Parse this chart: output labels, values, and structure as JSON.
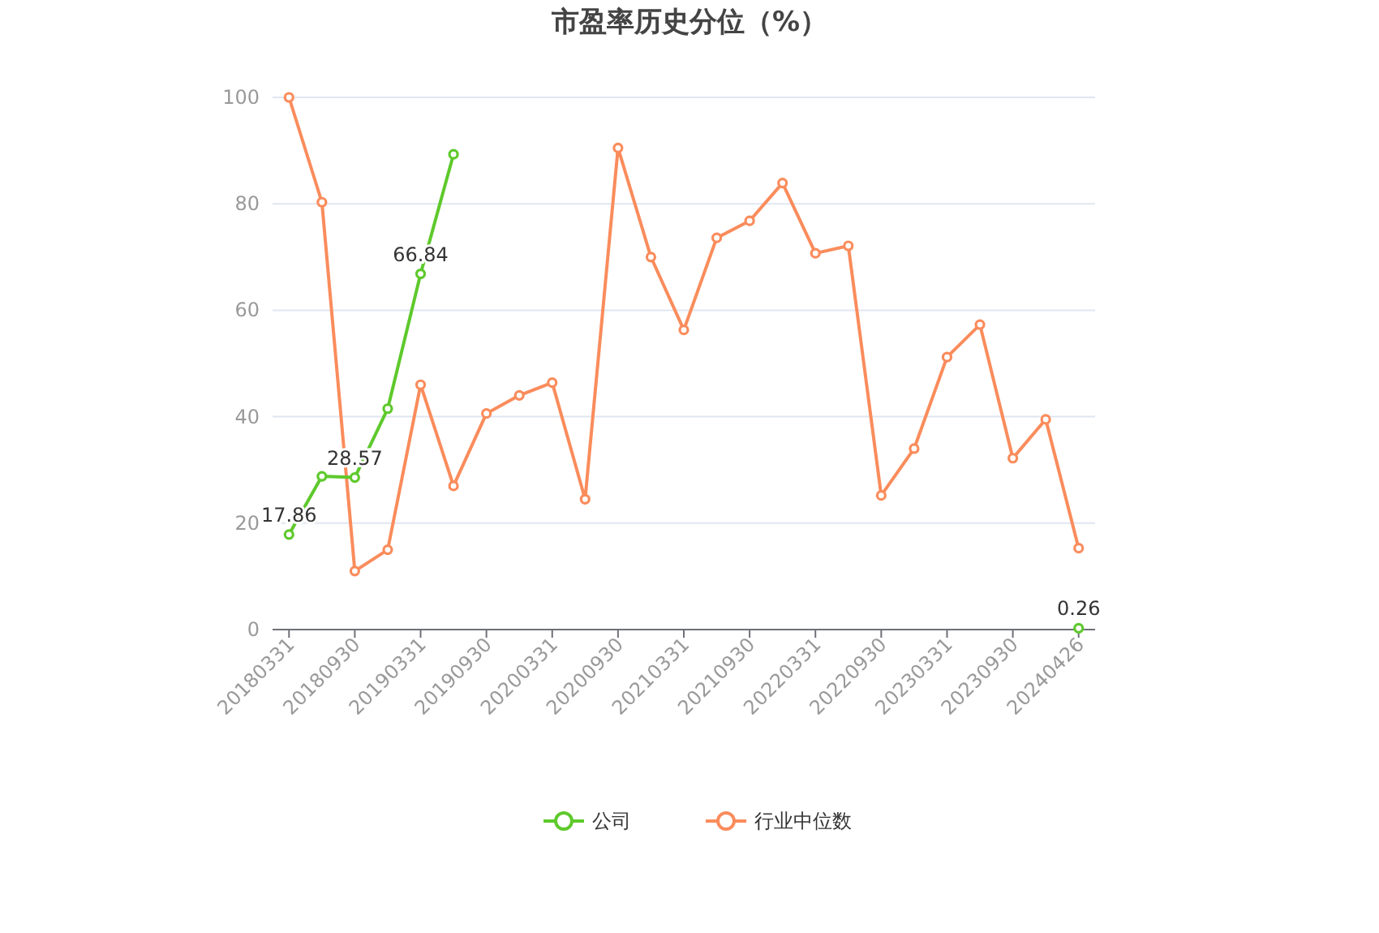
{
  "chart_data": {
    "type": "line",
    "title": "市盈率历史分位（%）",
    "categories": [
      "20180331",
      null,
      "20180930",
      null,
      "20190331",
      null,
      "20190930",
      null,
      "20200331",
      null,
      "20200930",
      null,
      "20210331",
      null,
      "20210930",
      null,
      "20220331",
      null,
      "20220930",
      null,
      "20230331",
      null,
      "20230930",
      null,
      "20240426"
    ],
    "series": [
      {
        "name": "公司",
        "color": "#5ec92c",
        "values": [
          17.86,
          28.8,
          28.57,
          41.5,
          66.84,
          89.3,
          null,
          null,
          null,
          null,
          null,
          null,
          null,
          null,
          null,
          null,
          null,
          null,
          null,
          null,
          null,
          null,
          null,
          null,
          0.26
        ],
        "value_labels": [
          "17.86",
          null,
          "28.57",
          null,
          "66.84",
          null,
          null,
          null,
          null,
          null,
          null,
          null,
          null,
          null,
          null,
          null,
          null,
          null,
          null,
          null,
          null,
          null,
          null,
          null,
          "0.26"
        ]
      },
      {
        "name": "行业中位数",
        "color": "#fa8c5c",
        "values": [
          100,
          80.3,
          11,
          15,
          46,
          27,
          40.6,
          44,
          46.4,
          24.5,
          90.5,
          70,
          56.3,
          73.6,
          76.8,
          83.9,
          70.7,
          72.1,
          25.2,
          34,
          51.2,
          57.3,
          32.2,
          39.5,
          15.3
        ]
      }
    ],
    "ylim": [
      0,
      100
    ],
    "yticks": [
      0,
      20,
      40,
      60,
      80,
      100
    ],
    "grid": "y",
    "legend": "bottom",
    "marker": "circle",
    "line_style": "solid"
  }
}
